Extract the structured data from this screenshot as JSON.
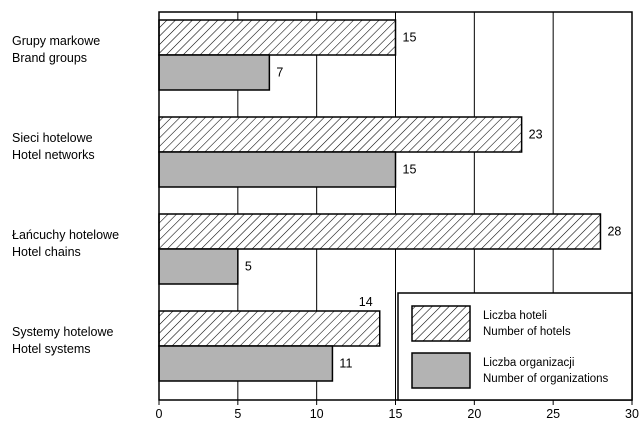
{
  "chart_data": {
    "type": "bar",
    "orientation": "horizontal",
    "categories": [
      [
        "Grupy markowe",
        "Brand groups"
      ],
      [
        "Sieci hotelowe",
        "Hotel networks"
      ],
      [
        "Łańcuchy hotelowe",
        "Hotel chains"
      ],
      [
        "Systemy hotelowe",
        "Hotel systems"
      ]
    ],
    "series": [
      {
        "name": [
          "Liczba hoteli",
          "Number of hotels"
        ],
        "values": [
          15,
          23,
          28,
          14
        ],
        "fill": "hatch",
        "color": "#000000"
      },
      {
        "name": [
          "Liczba organizacji",
          "Number of organizations"
        ],
        "values": [
          7,
          15,
          5,
          11
        ],
        "fill": "solid",
        "color": "#b3b3b3"
      }
    ],
    "xlim": [
      0,
      30
    ],
    "xticks": [
      0,
      5,
      10,
      15,
      20,
      25,
      30
    ],
    "grid": "vertical",
    "legend_position": "bottom-right",
    "data_labels": true
  }
}
